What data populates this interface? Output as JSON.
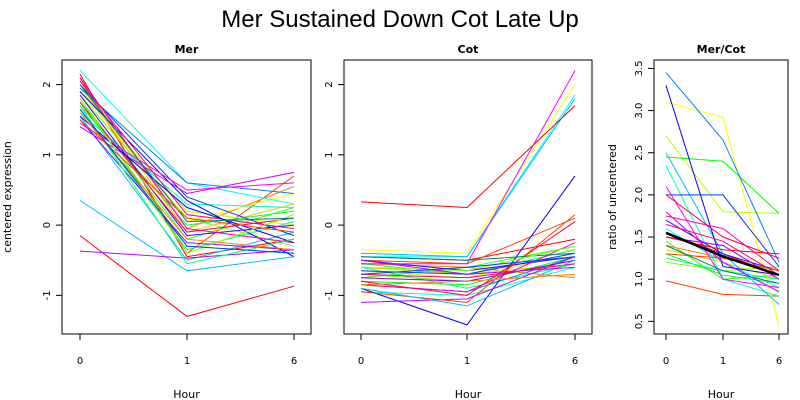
{
  "title": "Mer Sustained Down Cot Late Up",
  "chart_data": [
    {
      "type": "line",
      "panel_title": "Mer",
      "x": [
        "0",
        "1",
        "6"
      ],
      "xlabel": "Hour",
      "ylabel": "centered expression",
      "ylim": [
        -1.55,
        2.35
      ],
      "yticks": [
        "-1",
        "0",
        "1",
        "2"
      ],
      "series": [
        {
          "color": "#FF0000",
          "values": [
            2.15,
            -0.45,
            -0.2
          ]
        },
        {
          "color": "#FF4000",
          "values": [
            2.1,
            -0.4,
            0.7
          ]
        },
        {
          "color": "#FF8000",
          "values": [
            2.05,
            -0.05,
            0.55
          ]
        },
        {
          "color": "#FFBF00",
          "values": [
            2.0,
            -0.1,
            0.3
          ]
        },
        {
          "color": "#FFFF00",
          "values": [
            1.95,
            0.05,
            0.45
          ]
        },
        {
          "color": "#BFFF00",
          "values": [
            1.9,
            0.2,
            0.0
          ]
        },
        {
          "color": "#80FF00",
          "values": [
            1.85,
            0.1,
            -0.3
          ]
        },
        {
          "color": "#40FF00",
          "values": [
            1.8,
            -0.2,
            0.25
          ]
        },
        {
          "color": "#00FF00",
          "values": [
            1.75,
            -0.3,
            -0.4
          ]
        },
        {
          "color": "#00FF40",
          "values": [
            1.7,
            0.0,
            0.2
          ]
        },
        {
          "color": "#00FF80",
          "values": [
            1.65,
            -0.35,
            0.05
          ]
        },
        {
          "color": "#00FFBF",
          "values": [
            1.6,
            0.3,
            0.25
          ]
        },
        {
          "color": "#00FFFF",
          "values": [
            2.2,
            0.6,
            0.3
          ]
        },
        {
          "color": "#00BFFF",
          "values": [
            1.55,
            -0.5,
            -0.1
          ]
        },
        {
          "color": "#0080FF",
          "values": [
            1.95,
            0.6,
            0.45
          ]
        },
        {
          "color": "#0040FF",
          "values": [
            2.0,
            0.4,
            -0.15
          ]
        },
        {
          "color": "#0000FF",
          "values": [
            1.9,
            0.35,
            -0.45
          ]
        },
        {
          "color": "#4000FF",
          "values": [
            1.85,
            -0.15,
            0.0
          ]
        },
        {
          "color": "#8000FF",
          "values": [
            1.5,
            -0.25,
            -0.35
          ]
        },
        {
          "color": "#BF00FF",
          "values": [
            1.4,
            0.45,
            0.75
          ]
        },
        {
          "color": "#FF00FF",
          "values": [
            1.45,
            0.5,
            0.6
          ]
        },
        {
          "color": "#FF00BF",
          "values": [
            2.1,
            -0.05,
            -0.25
          ]
        },
        {
          "color": "#FF0080",
          "values": [
            2.05,
            0.15,
            -0.05
          ]
        },
        {
          "color": "#FF0040",
          "values": [
            1.75,
            -0.1,
            0.1
          ]
        },
        {
          "color": "#00BFFF",
          "values": [
            0.35,
            -0.65,
            -0.45
          ]
        },
        {
          "color": "#FF0000",
          "values": [
            -0.15,
            -1.3,
            -0.87
          ]
        },
        {
          "color": "#0000FF",
          "values": [
            1.55,
            0.25,
            -0.25
          ]
        },
        {
          "color": "#80FF00",
          "values": [
            1.8,
            -0.4,
            0.15
          ]
        },
        {
          "color": "#BF00FF",
          "values": [
            -0.37,
            -0.47,
            -0.35
          ]
        },
        {
          "color": "#00FF80",
          "values": [
            1.7,
            -0.55,
            -0.2
          ]
        },
        {
          "color": "#FF8000",
          "values": [
            1.6,
            -0.2,
            -0.35
          ]
        },
        {
          "color": "#008080",
          "values": [
            2.0,
            0.05,
            0.1
          ]
        },
        {
          "color": "#FF4000",
          "values": [
            1.5,
            0.1,
            -0.1
          ]
        },
        {
          "color": "#0040FF",
          "values": [
            1.65,
            -0.3,
            -0.4
          ]
        }
      ]
    },
    {
      "type": "line",
      "panel_title": "Cot",
      "x": [
        "0",
        "1",
        "6"
      ],
      "xlabel": "Hour",
      "ylabel": "",
      "ylim": [
        -1.55,
        2.35
      ],
      "yticks": [
        "-1",
        "0",
        "1",
        "2"
      ],
      "series": [
        {
          "color": "#FF0000",
          "values": [
            -0.45,
            -0.5,
            -0.2
          ]
        },
        {
          "color": "#FF4000",
          "values": [
            -0.5,
            -0.55,
            0.1
          ]
        },
        {
          "color": "#FF8000",
          "values": [
            -0.55,
            -0.6,
            -0.75
          ]
        },
        {
          "color": "#FFBF00",
          "values": [
            -0.6,
            -0.7,
            -0.55
          ]
        },
        {
          "color": "#FFFF00",
          "values": [
            -0.35,
            -0.4,
            2.0
          ]
        },
        {
          "color": "#BFFF00",
          "values": [
            -0.65,
            -0.75,
            -0.4
          ]
        },
        {
          "color": "#80FF00",
          "values": [
            -0.7,
            -0.8,
            -0.5
          ]
        },
        {
          "color": "#40FF00",
          "values": [
            -0.75,
            -0.6,
            -0.3
          ]
        },
        {
          "color": "#00FF00",
          "values": [
            -0.8,
            -0.85,
            -0.45
          ]
        },
        {
          "color": "#00FF40",
          "values": [
            -0.55,
            -0.7,
            -0.35
          ]
        },
        {
          "color": "#00FF80",
          "values": [
            -0.6,
            -0.9,
            -0.55
          ]
        },
        {
          "color": "#00FFBF",
          "values": [
            -0.95,
            -1.0,
            -0.6
          ]
        },
        {
          "color": "#00FFFF",
          "values": [
            -0.45,
            -0.45,
            1.85
          ]
        },
        {
          "color": "#00BFFF",
          "values": [
            -0.4,
            -0.45,
            1.8
          ]
        },
        {
          "color": "#0080FF",
          "values": [
            -0.85,
            -0.95,
            -0.45
          ]
        },
        {
          "color": "#0040FF",
          "values": [
            -0.65,
            -0.7,
            -0.4
          ]
        },
        {
          "color": "#0000FF",
          "values": [
            -0.9,
            -1.42,
            0.7
          ]
        },
        {
          "color": "#4000FF",
          "values": [
            -0.5,
            -0.65,
            -0.45
          ]
        },
        {
          "color": "#8000FF",
          "values": [
            -0.75,
            -0.8,
            -0.5
          ]
        },
        {
          "color": "#BF00FF",
          "values": [
            -1.1,
            -1.05,
            -0.45
          ]
        },
        {
          "color": "#FF00FF",
          "values": [
            -0.55,
            -0.55,
            2.2
          ]
        },
        {
          "color": "#FF00BF",
          "values": [
            -0.85,
            -0.95,
            -0.25
          ]
        },
        {
          "color": "#FF0080",
          "values": [
            -0.7,
            -0.75,
            -0.55
          ]
        },
        {
          "color": "#FF0040",
          "values": [
            -0.8,
            -1.0,
            0.05
          ]
        },
        {
          "color": "#FF0000",
          "values": [
            0.33,
            0.25,
            1.7
          ]
        },
        {
          "color": "#FF4000",
          "values": [
            -0.95,
            -1.1,
            0.15
          ]
        },
        {
          "color": "#008080",
          "values": [
            -0.45,
            -0.5,
            -0.4
          ]
        },
        {
          "color": "#00BFFF",
          "values": [
            -0.9,
            -1.15,
            -0.5
          ]
        },
        {
          "color": "#80FF00",
          "values": [
            -0.6,
            -0.65,
            -0.3
          ]
        },
        {
          "color": "#FF8000",
          "values": [
            -0.85,
            -0.8,
            -0.7
          ]
        },
        {
          "color": "#0040FF",
          "values": [
            -0.7,
            -0.6,
            -0.45
          ]
        },
        {
          "color": "#BF00FF",
          "values": [
            -0.5,
            -0.7,
            -0.6
          ]
        }
      ]
    },
    {
      "type": "line",
      "panel_title": "Mer/Cot",
      "x": [
        "0",
        "1",
        "6"
      ],
      "xlabel": "Hour",
      "ylabel": "ratio of uncentered",
      "ylim": [
        0.35,
        3.6
      ],
      "yticks": [
        "0.5",
        "1.0",
        "1.5",
        "2.0",
        "2.5",
        "3.0",
        "3.5"
      ],
      "series": [
        {
          "color": "#FF0000",
          "values": [
            1.55,
            1.3,
            1.05
          ]
        },
        {
          "color": "#FF4000",
          "values": [
            0.98,
            0.82,
            0.8
          ]
        },
        {
          "color": "#FF8000",
          "values": [
            1.4,
            1.25,
            1.1
          ]
        },
        {
          "color": "#FFBF00",
          "values": [
            1.35,
            1.2,
            1.0
          ]
        },
        {
          "color": "#FFFF00",
          "values": [
            3.1,
            2.92,
            0.45
          ]
        },
        {
          "color": "#BFFF00",
          "values": [
            2.7,
            1.8,
            1.78
          ]
        },
        {
          "color": "#80FF00",
          "values": [
            1.2,
            1.1,
            1.15
          ]
        },
        {
          "color": "#40FF00",
          "values": [
            1.45,
            1.0,
            1.05
          ]
        },
        {
          "color": "#00FF00",
          "values": [
            2.45,
            2.4,
            1.78
          ]
        },
        {
          "color": "#00FF40",
          "values": [
            1.3,
            1.05,
            0.95
          ]
        },
        {
          "color": "#00FF80",
          "values": [
            1.25,
            1.1,
            1.0
          ]
        },
        {
          "color": "#00FFBF",
          "values": [
            2.35,
            1.0,
            0.8
          ]
        },
        {
          "color": "#00FFFF",
          "values": [
            1.6,
            1.2,
            0.9
          ]
        },
        {
          "color": "#00BFFF",
          "values": [
            2.5,
            1.3,
            0.7
          ]
        },
        {
          "color": "#0080FF",
          "values": [
            3.45,
            2.65,
            1.2
          ]
        },
        {
          "color": "#0040FF",
          "values": [
            2.0,
            2.0,
            1.15
          ]
        },
        {
          "color": "#0000FF",
          "values": [
            3.3,
            1.15,
            1.05
          ]
        },
        {
          "color": "#4000FF",
          "values": [
            1.7,
            1.3,
            1.1
          ]
        },
        {
          "color": "#8000FF",
          "values": [
            1.5,
            1.4,
            1.0
          ]
        },
        {
          "color": "#BF00FF",
          "values": [
            1.8,
            1.2,
            0.85
          ]
        },
        {
          "color": "#FF00FF",
          "values": [
            2.1,
            1.0,
            0.9
          ]
        },
        {
          "color": "#FF00BF",
          "values": [
            1.75,
            1.6,
            1.1
          ]
        },
        {
          "color": "#FF0080",
          "values": [
            1.65,
            1.45,
            1.05
          ]
        },
        {
          "color": "#FF0040",
          "values": [
            2.0,
            1.5,
            1.25
          ]
        },
        {
          "color": "#FF0000",
          "values": [
            1.5,
            1.35,
            1.3
          ]
        },
        {
          "color": "#FF4000",
          "values": [
            1.3,
            1.25,
            1.1
          ]
        },
        {
          "color": "#008080",
          "values": [
            1.4,
            1.1,
            0.95
          ]
        },
        {
          "color": "#000000",
          "values": [
            1.55,
            1.27,
            1.05
          ],
          "bold": true
        }
      ]
    }
  ]
}
